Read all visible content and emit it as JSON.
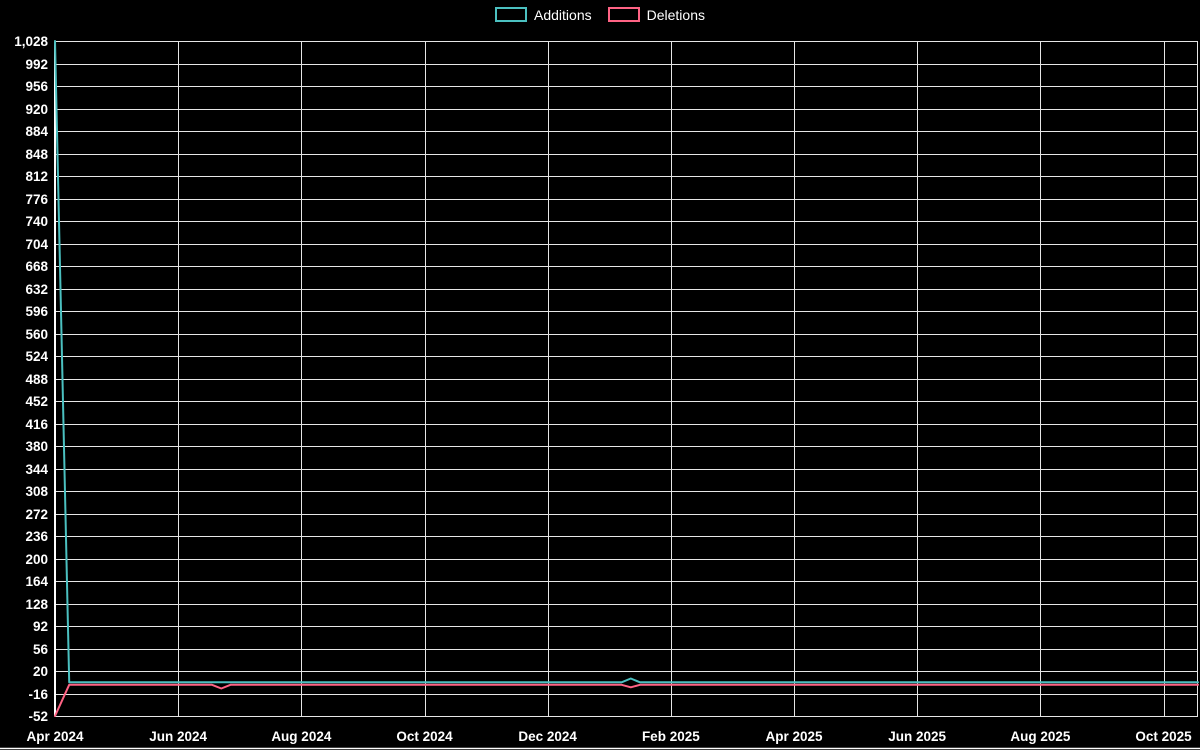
{
  "page": {
    "background": "#000000"
  },
  "chart_data": {
    "type": "line",
    "legend_position": "top-center",
    "grid": true,
    "legend": [
      {
        "label": "Additions",
        "color": "#4bc0c0"
      },
      {
        "label": "Deletions",
        "color": "#ff6384"
      }
    ],
    "colors": {
      "grid": "#e6e6e6",
      "axis": "#ffffff",
      "text": "#ffffff",
      "background": "#000000"
    },
    "x_axis": {
      "tick_labels": [
        "Apr 2024",
        "Jun 2024",
        "Aug 2024",
        "Oct 2024",
        "Dec 2024",
        "Feb 2025",
        "Apr 2025",
        "Jun 2025",
        "Aug 2025",
        "Oct 2025"
      ],
      "tick_positions_months": [
        0,
        2,
        4,
        6,
        8,
        10,
        12,
        14,
        16,
        18
      ],
      "max_month": 18.56,
      "right_edge_gridline": true
    },
    "y_axis": {
      "min": -52,
      "max": 1028,
      "tick_step": 36,
      "tick_values": [
        1028,
        992,
        956,
        920,
        884,
        848,
        812,
        776,
        740,
        704,
        668,
        632,
        596,
        560,
        524,
        488,
        452,
        416,
        380,
        344,
        308,
        272,
        236,
        200,
        164,
        128,
        92,
        56,
        20,
        -16,
        -52
      ]
    },
    "series": [
      {
        "name": "Additions",
        "color": "#4bc0c0",
        "points": [
          [
            0,
            1028
          ],
          [
            0.23,
            2
          ],
          [
            9.2,
            2
          ],
          [
            9.35,
            8
          ],
          [
            9.5,
            2
          ],
          [
            18.56,
            2
          ]
        ]
      },
      {
        "name": "Deletions",
        "color": "#ff6384",
        "points": [
          [
            0,
            -52
          ],
          [
            0.23,
            -2
          ],
          [
            2.55,
            -2
          ],
          [
            2.7,
            -8
          ],
          [
            2.85,
            -2
          ],
          [
            9.2,
            -2
          ],
          [
            9.35,
            -6
          ],
          [
            9.5,
            -2
          ],
          [
            18.56,
            -2
          ]
        ]
      }
    ]
  }
}
